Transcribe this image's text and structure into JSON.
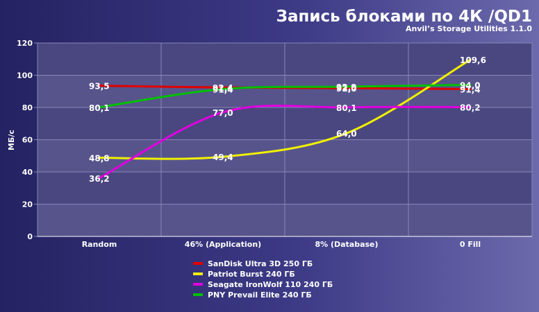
{
  "chart_data": {
    "type": "line",
    "title": "Запись блоками по 4К /QD1",
    "subtitle": "Anvil’s Storage Utilities 1.1.0",
    "ylabel": "МБ/с",
    "ylim": [
      0,
      120
    ],
    "yticks": [
      "0",
      "20",
      "40",
      "60",
      "80",
      "100",
      "120"
    ],
    "categories": [
      "Random",
      "46% (Application)",
      "8% (Database)",
      "0 Fill"
    ],
    "grid": true,
    "legend_position": "bottom",
    "series": [
      {
        "name": "SanDisk Ultra 3D 250 ГБ",
        "color": "#e00000",
        "values": [
          93.5,
          92.4,
          92.0,
          91.4
        ],
        "labels": [
          "93,5",
          "92,4",
          "92,0",
          "91,4"
        ]
      },
      {
        "name": "Patriot Burst 240 ГБ",
        "color": "#f0f000",
        "values": [
          48.8,
          49.4,
          64.0,
          109.6
        ],
        "labels": [
          "48,8",
          "49,4",
          "64,0",
          "109,6"
        ]
      },
      {
        "name": "Seagate IronWolf 110 240 ГБ",
        "color": "#e000e0",
        "values": [
          36.2,
          77.0,
          80.1,
          80.2
        ],
        "labels": [
          "36,2",
          "77,0",
          "80,1",
          "80,2"
        ]
      },
      {
        "name": "PNY Prevail Elite 240 ГБ",
        "color": "#00c000",
        "values": [
          80.1,
          91.4,
          92.9,
          94.0
        ],
        "labels": [
          "80,1",
          "91,4",
          "92,9",
          "94,0"
        ]
      }
    ]
  }
}
